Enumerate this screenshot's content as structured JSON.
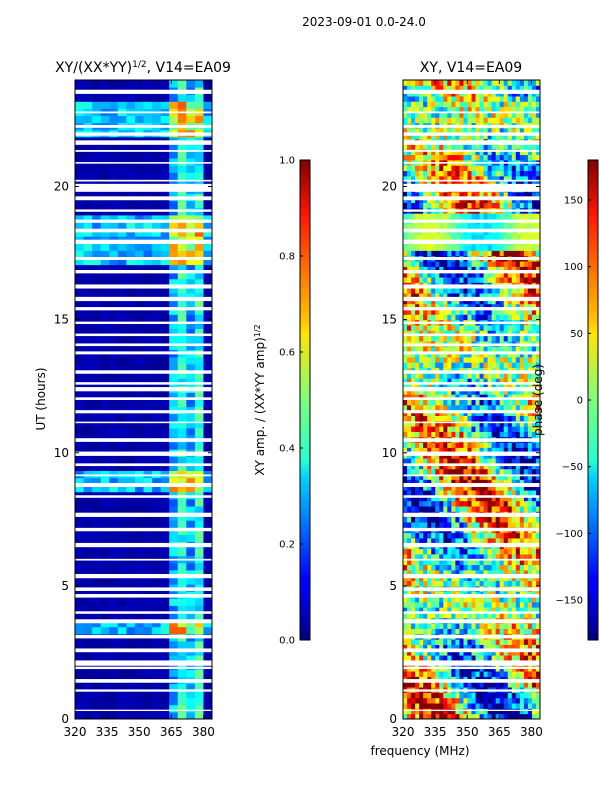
{
  "suptitle": "2023-09-01 0.0-24.0",
  "xlabel_shared": "frequency (MHz)",
  "colormap": "jet",
  "chart_data": [
    {
      "type": "heatmap",
      "title": "XY/(XX*YY)$^{1/2}$, V14=EA09",
      "title_main": "XY/(XX*YY)",
      "title_sup": "1/2",
      "title_tail": ", V14=EA09",
      "xlabel": "frequency (MHz)",
      "ylabel": "UT (hours)",
      "xlim": [
        320,
        384
      ],
      "ylim": [
        0,
        24
      ],
      "xticks": [
        320,
        335,
        350,
        365,
        380
      ],
      "yticks": [
        0,
        5,
        10,
        15,
        20
      ],
      "active_band_mhz": [
        362,
        382
      ],
      "bright_intervals_hours": [
        [
          17.2,
          19.0
        ],
        [
          21.8,
          23.2
        ],
        [
          3.2,
          3.6
        ],
        [
          8.5,
          9.2
        ]
      ],
      "colorbar": {
        "label": "XY amp. / (XX*YY amp)$^{1/2}$",
        "label_main": "XY amp. / (XX*YY amp)",
        "label_sup": "1/2",
        "range": [
          0.0,
          1.0
        ],
        "ticks": [
          "0.0",
          "0.2",
          "0.4",
          "0.6",
          "0.8",
          "1.0"
        ],
        "tick_values": [
          0.0,
          0.2,
          0.4,
          0.6,
          0.8,
          1.0
        ]
      }
    },
    {
      "type": "heatmap",
      "title": "XY, V14=EA09",
      "xlabel": "frequency (MHz)",
      "ylabel": "",
      "xlim": [
        320,
        384
      ],
      "ylim": [
        0,
        24
      ],
      "xticks": [
        320,
        335,
        350,
        365,
        380
      ],
      "yticks": [
        0,
        5,
        10,
        15,
        20
      ],
      "colorbar": {
        "label": "phase (deg)",
        "range": [
          -180,
          180
        ],
        "ticks": [
          "−150",
          "−100",
          "−50",
          "0",
          "50",
          "100",
          "150"
        ],
        "tick_values": [
          -150,
          -100,
          -50,
          0,
          50,
          100,
          150
        ]
      }
    }
  ]
}
